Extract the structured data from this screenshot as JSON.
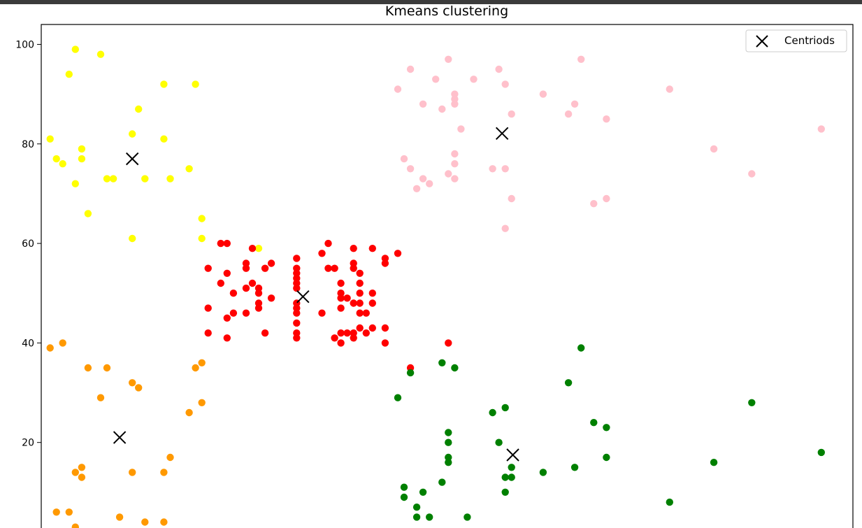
{
  "chart_data": {
    "type": "scatter",
    "title": "Kmeans clustering",
    "xlabel": "",
    "ylabel": "",
    "xlim": [
      13.6,
      142
    ],
    "ylim": [
      0,
      104
    ],
    "yticks": [
      20,
      40,
      60,
      80,
      100
    ],
    "grid": false,
    "legend": {
      "placement": "top-right",
      "entries": [
        {
          "label": "Centriods",
          "marker": "x",
          "color": "#000000"
        }
      ]
    },
    "series": [
      {
        "color": "#ffff00",
        "points": [
          [
            15,
            81
          ],
          [
            16,
            77
          ],
          [
            17,
            76
          ],
          [
            18,
            94
          ],
          [
            19,
            99
          ],
          [
            19,
            72
          ],
          [
            20,
            79
          ],
          [
            20,
            77
          ],
          [
            21,
            66
          ],
          [
            23,
            98
          ],
          [
            24,
            73
          ],
          [
            25,
            73
          ],
          [
            28,
            82
          ],
          [
            28,
            61
          ],
          [
            29,
            87
          ],
          [
            30,
            73
          ],
          [
            33,
            92
          ],
          [
            33,
            81
          ],
          [
            34,
            73
          ],
          [
            37,
            75
          ],
          [
            38,
            92
          ],
          [
            39,
            65
          ],
          [
            39,
            61
          ],
          [
            48,
            59
          ]
        ]
      },
      {
        "color": "#ff9900",
        "points": [
          [
            15,
            39
          ],
          [
            16,
            6
          ],
          [
            17,
            40
          ],
          [
            18,
            6
          ],
          [
            19,
            14
          ],
          [
            19,
            3
          ],
          [
            20,
            15
          ],
          [
            20,
            13
          ],
          [
            21,
            35
          ],
          [
            23,
            29
          ],
          [
            24,
            35
          ],
          [
            26,
            5
          ],
          [
            28,
            32
          ],
          [
            28,
            14
          ],
          [
            29,
            31
          ],
          [
            30,
            4
          ],
          [
            33,
            14
          ],
          [
            33,
            4
          ],
          [
            34,
            17
          ],
          [
            37,
            26
          ],
          [
            38,
            35
          ],
          [
            39,
            36
          ],
          [
            39,
            28
          ]
        ]
      },
      {
        "color": "#ff0000",
        "points": [
          [
            40,
            55
          ],
          [
            40,
            47
          ],
          [
            40,
            42
          ],
          [
            42,
            52
          ],
          [
            42,
            60
          ],
          [
            43,
            60
          ],
          [
            43,
            54
          ],
          [
            43,
            45
          ],
          [
            43,
            41
          ],
          [
            44,
            50
          ],
          [
            44,
            46
          ],
          [
            46,
            55
          ],
          [
            46,
            51
          ],
          [
            46,
            46
          ],
          [
            46,
            56
          ],
          [
            47,
            59
          ],
          [
            47,
            52
          ],
          [
            48,
            51
          ],
          [
            48,
            50
          ],
          [
            48,
            48
          ],
          [
            48,
            47
          ],
          [
            49,
            55
          ],
          [
            49,
            42
          ],
          [
            50,
            56
          ],
          [
            50,
            49
          ],
          [
            54,
            57
          ],
          [
            54,
            55
          ],
          [
            54,
            54
          ],
          [
            54,
            53
          ],
          [
            54,
            52
          ],
          [
            54,
            51
          ],
          [
            54,
            48
          ],
          [
            54,
            47
          ],
          [
            54,
            46
          ],
          [
            54,
            44
          ],
          [
            54,
            42
          ],
          [
            54,
            41
          ],
          [
            58,
            46
          ],
          [
            59,
            60
          ],
          [
            58,
            58
          ],
          [
            59,
            55
          ],
          [
            60,
            55
          ],
          [
            60,
            41
          ],
          [
            61,
            52
          ],
          [
            61,
            50
          ],
          [
            61,
            49
          ],
          [
            61,
            47
          ],
          [
            61,
            42
          ],
          [
            61,
            40
          ],
          [
            62,
            49
          ],
          [
            62,
            42
          ],
          [
            63,
            59
          ],
          [
            63,
            56
          ],
          [
            63,
            55
          ],
          [
            63,
            48
          ],
          [
            63,
            42
          ],
          [
            63,
            41
          ],
          [
            64,
            54
          ],
          [
            64,
            52
          ],
          [
            64,
            50
          ],
          [
            64,
            48
          ],
          [
            64,
            46
          ],
          [
            64,
            43
          ],
          [
            65,
            46
          ],
          [
            65,
            42
          ],
          [
            66,
            59
          ],
          [
            66,
            50
          ],
          [
            66,
            48
          ],
          [
            66,
            43
          ],
          [
            68,
            57
          ],
          [
            68,
            56
          ],
          [
            68,
            43
          ],
          [
            68,
            40
          ],
          [
            70,
            58
          ],
          [
            72,
            35
          ],
          [
            78,
            40
          ]
        ]
      },
      {
        "color": "#ffc0cb",
        "points": [
          [
            70,
            91
          ],
          [
            71,
            77
          ],
          [
            72,
            75
          ],
          [
            72,
            95
          ],
          [
            73,
            71
          ],
          [
            74,
            88
          ],
          [
            74,
            73
          ],
          [
            75,
            72
          ],
          [
            76,
            93
          ],
          [
            77,
            87
          ],
          [
            78,
            97
          ],
          [
            78,
            74
          ],
          [
            79,
            90
          ],
          [
            79,
            89
          ],
          [
            79,
            88
          ],
          [
            79,
            78
          ],
          [
            79,
            76
          ],
          [
            79,
            73
          ],
          [
            80,
            83
          ],
          [
            82,
            93
          ],
          [
            85,
            75
          ],
          [
            86,
            95
          ],
          [
            87,
            92
          ],
          [
            87,
            75
          ],
          [
            87,
            63
          ],
          [
            88,
            86
          ],
          [
            88,
            69
          ],
          [
            93,
            90
          ],
          [
            97,
            86
          ],
          [
            98,
            88
          ],
          [
            99,
            97
          ],
          [
            101,
            68
          ],
          [
            103,
            85
          ],
          [
            103,
            69
          ],
          [
            113,
            91
          ],
          [
            120,
            79
          ],
          [
            126,
            74
          ],
          [
            137,
            83
          ]
        ]
      },
      {
        "color": "#008000",
        "points": [
          [
            71,
            11
          ],
          [
            71,
            9
          ],
          [
            72,
            34
          ],
          [
            73,
            7
          ],
          [
            73,
            5
          ],
          [
            74,
            10
          ],
          [
            75,
            5
          ],
          [
            77,
            36
          ],
          [
            77,
            12
          ],
          [
            78,
            22
          ],
          [
            78,
            20
          ],
          [
            78,
            17
          ],
          [
            78,
            16
          ],
          [
            79,
            35
          ],
          [
            81,
            5
          ],
          [
            85,
            26
          ],
          [
            86,
            20
          ],
          [
            87,
            27
          ],
          [
            87,
            13
          ],
          [
            87,
            10
          ],
          [
            88,
            15
          ],
          [
            88,
            13
          ],
          [
            93,
            14
          ],
          [
            97,
            32
          ],
          [
            98,
            15
          ],
          [
            99,
            39
          ],
          [
            101,
            24
          ],
          [
            103,
            23
          ],
          [
            103,
            17
          ],
          [
            113,
            8
          ],
          [
            120,
            16
          ],
          [
            126,
            28
          ],
          [
            137,
            18
          ],
          [
            70,
            29
          ]
        ]
      }
    ],
    "centroids": [
      [
        28,
        77
      ],
      [
        26,
        21
      ],
      [
        55,
        49.3
      ],
      [
        86.5,
        82.1
      ],
      [
        88.2,
        17.5
      ]
    ]
  }
}
